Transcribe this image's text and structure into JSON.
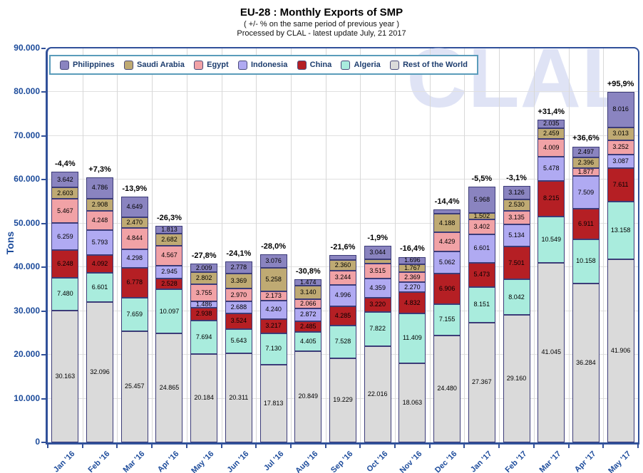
{
  "chart_data": {
    "type": "bar",
    "stacked": true,
    "title": "EU-28 : Monthly Exports of SMP",
    "subtitle": "( +/- % on the same period of previous year )",
    "source_note": "Processed by CLAL - latest update July, 21 2017",
    "ylabel": "Tons",
    "ylim": [
      0,
      90000
    ],
    "ytick_step": 10000,
    "ytick_labels": [
      "0",
      "10.000",
      "20.000",
      "30.000",
      "40.000",
      "50.000",
      "60.000",
      "70.000",
      "80.000",
      "90.000"
    ],
    "grid": true,
    "legend_position": "top-left-inside",
    "watermark": "CLAL",
    "categories": [
      "Jan '16",
      "Feb '16",
      "Mar '16",
      "Apr '16",
      "May '16",
      "Jun '16",
      "Jul '16",
      "Aug '16",
      "Sep '16",
      "Oct '16",
      "Nov '16",
      "Dec '16",
      "Jan '17",
      "Feb '17",
      "Mar '17",
      "Apr '17",
      "May '17"
    ],
    "annotations": [
      "-4,4%",
      "+7,3%",
      "-13,9%",
      "-26,3%",
      "-27,8%",
      "-24,1%",
      "-28,0%",
      "-30,8%",
      "-21,6%",
      "-1,9%",
      "-16,4%",
      "-14,4%",
      "-5,5%",
      "-3,1%",
      "+31,4%",
      "+36,6%",
      "+95,9%"
    ],
    "series": [
      {
        "name": "Philippines",
        "color": "#8a84c0",
        "values": [
          3642,
          4786,
          4649,
          1813,
          2009,
          2778,
          3076,
          1474,
          1170,
          3044,
          1696,
          1000,
          5968,
          3126,
          2035,
          2497,
          8016
        ],
        "labels": [
          "3.642",
          "4.786",
          "4.649",
          "1.813",
          "2.009",
          "2.778",
          "3.076",
          "1.474",
          "",
          "3.044",
          "1.696",
          "",
          "5.968",
          "3.126",
          "2.035",
          "2.497",
          "8.016"
        ]
      },
      {
        "name": "Saudi Arabia",
        "color": "#bfaa73",
        "values": [
          2603,
          2908,
          2470,
          2682,
          2802,
          3369,
          5258,
          3140,
          2360,
          950,
          1767,
          4188,
          1502,
          2530,
          2459,
          2396,
          3013
        ],
        "labels": [
          "2.603",
          "2.908",
          "2.470",
          "2.682",
          "2.802",
          "3.369",
          "5.258",
          "3.140",
          "2.360",
          "",
          "1.767",
          "4.188",
          "1.502",
          "2.530",
          "2.459",
          "2.396",
          "3.013"
        ]
      },
      {
        "name": "Egypt",
        "color": "#f1a2a6",
        "values": [
          5467,
          4248,
          4844,
          4567,
          3755,
          2970,
          2173,
          2066,
          3244,
          3515,
          2369,
          4429,
          3402,
          3135,
          4009,
          1877,
          3252
        ],
        "labels": [
          "5.467",
          "4.248",
          "4.844",
          "4.567",
          "3.755",
          "2.970",
          "2.173",
          "2.066",
          "3.244",
          "3.515",
          "2.369",
          "4.429",
          "3.402",
          "3.135",
          "4.009",
          "1.877",
          "3.252"
        ]
      },
      {
        "name": "Indonesia",
        "color": "#b0aaf2",
        "values": [
          6259,
          5793,
          4298,
          2945,
          1486,
          2688,
          4240,
          2872,
          4996,
          4359,
          2270,
          5062,
          6601,
          5134,
          5478,
          7509,
          3087
        ],
        "labels": [
          "6.259",
          "5.793",
          "4.298",
          "2.945",
          "1.486",
          "2.688",
          "4.240",
          "2.872",
          "4.996",
          "4.359",
          "2.270",
          "5.062",
          "6.601",
          "5.134",
          "5.478",
          "7.509",
          "3.087"
        ]
      },
      {
        "name": "China",
        "color": "#b51f24",
        "values": [
          6248,
          4092,
          6778,
          2528,
          2938,
          3524,
          3217,
          2485,
          4285,
          3220,
          4832,
          6906,
          5473,
          7501,
          8215,
          6911,
          7611
        ],
        "labels": [
          "6.248",
          "4.092",
          "6.778",
          "2.528",
          "2.938",
          "3.524",
          "3.217",
          "2.485",
          "4.285",
          "3.220",
          "4.832",
          "6.906",
          "5.473",
          "7.501",
          "8.215",
          "6.911",
          "7.611"
        ]
      },
      {
        "name": "Algeria",
        "color": "#a9ecdd",
        "values": [
          7480,
          6601,
          7659,
          10097,
          7694,
          5643,
          7130,
          4405,
          7528,
          7822,
          11409,
          7155,
          8151,
          8042,
          10549,
          10158,
          13158
        ],
        "labels": [
          "7.480",
          "6.601",
          "7.659",
          "10.097",
          "7.694",
          "5.643",
          "7.130",
          "4.405",
          "7.528",
          "7.822",
          "11.409",
          "7.155",
          "8.151",
          "8.042",
          "10.549",
          "10.158",
          "13.158"
        ]
      },
      {
        "name": "Rest of the World",
        "color": "#dadada",
        "values": [
          30163,
          32096,
          25457,
          24865,
          20184,
          20311,
          17813,
          20849,
          19229,
          22016,
          18063,
          24480,
          27367,
          29160,
          41045,
          36284,
          41906
        ],
        "labels": [
          "30.163",
          "32.096",
          "25.457",
          "24.865",
          "20.184",
          "20.311",
          "17.813",
          "20.849",
          "19.229",
          "22.016",
          "18.063",
          "24.480",
          "27.367",
          "29.160",
          "41.045",
          "36.284",
          "41.906"
        ]
      }
    ]
  },
  "palette": {
    "axis": "#31519a",
    "tick_text": "#1c4b9b",
    "legend_text": "#1d3d6e",
    "legend_border": "#5a9cba",
    "segment_border": "#3c3c78",
    "gridline": "#e0e0e0",
    "column_line": "#d8d8d8",
    "watermark_color": "#dfe3f5",
    "annotation_text": "#000000"
  }
}
